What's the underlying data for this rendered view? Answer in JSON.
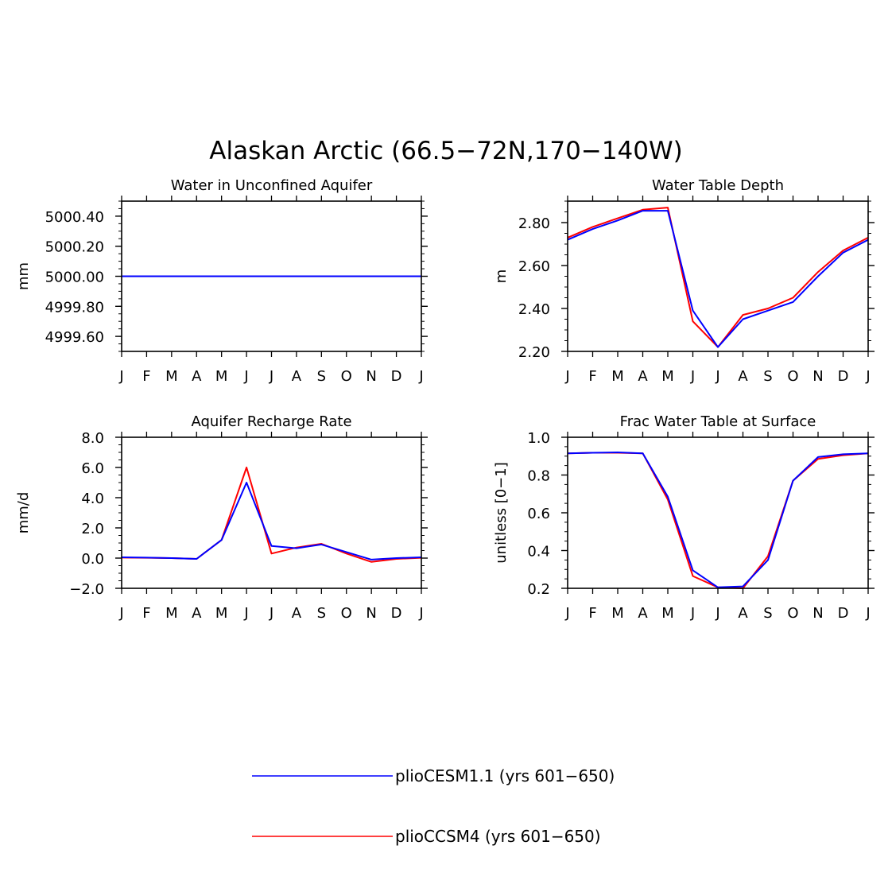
{
  "figure": {
    "title": "Alaskan Arctic (66.5−72N,170−140W)"
  },
  "legend": {
    "entries": [
      {
        "label": "plioCESM1.1 (yrs 601−650)",
        "color": "#0000ff"
      },
      {
        "label": "plioCCSM4 (yrs 601−650)",
        "color": "#ff0000"
      }
    ]
  },
  "chart_data": [
    {
      "type": "line",
      "title": "Water in Unconfined Aquifer",
      "xlabel": "",
      "ylabel": "mm",
      "categories": [
        "J",
        "F",
        "M",
        "A",
        "M",
        "J",
        "J",
        "A",
        "S",
        "O",
        "N",
        "D",
        "J"
      ],
      "ylim": [
        4999.5,
        5000.5
      ],
      "yticks": [
        4999.6,
        4999.8,
        5000.0,
        5000.2,
        5000.4
      ],
      "ytick_labels": [
        "4999.60",
        "4999.80",
        "5000.00",
        "5000.20",
        "5000.40"
      ],
      "series": [
        {
          "name": "plioCCSM4 (yrs 601−650)",
          "color": "#ff0000",
          "values": [
            5000,
            5000,
            5000,
            5000,
            5000,
            5000,
            5000,
            5000,
            5000,
            5000,
            5000,
            5000,
            5000
          ]
        },
        {
          "name": "plioCESM1.1 (yrs 601−650)",
          "color": "#0000ff",
          "values": [
            5000,
            5000,
            5000,
            5000,
            5000,
            5000,
            5000,
            5000,
            5000,
            5000,
            5000,
            5000,
            5000
          ]
        }
      ]
    },
    {
      "type": "line",
      "title": "Water Table Depth",
      "xlabel": "",
      "ylabel": "m",
      "categories": [
        "J",
        "F",
        "M",
        "A",
        "M",
        "J",
        "J",
        "A",
        "S",
        "O",
        "N",
        "D",
        "J"
      ],
      "ylim": [
        2.2,
        2.9
      ],
      "yticks": [
        2.2,
        2.4,
        2.6,
        2.8
      ],
      "ytick_labels": [
        "2.20",
        "2.40",
        "2.60",
        "2.80"
      ],
      "series": [
        {
          "name": "plioCCSM4 (yrs 601−650)",
          "color": "#ff0000",
          "values": [
            2.73,
            2.78,
            2.82,
            2.86,
            2.87,
            2.34,
            2.22,
            2.37,
            2.4,
            2.45,
            2.57,
            2.67,
            2.73
          ]
        },
        {
          "name": "plioCESM1.1 (yrs 601−650)",
          "color": "#0000ff",
          "values": [
            2.72,
            2.77,
            2.81,
            2.855,
            2.855,
            2.39,
            2.22,
            2.35,
            2.39,
            2.43,
            2.55,
            2.66,
            2.72
          ]
        }
      ]
    },
    {
      "type": "line",
      "title": "Aquifer Recharge Rate",
      "xlabel": "",
      "ylabel": "mm/d",
      "categories": [
        "J",
        "F",
        "M",
        "A",
        "M",
        "J",
        "J",
        "A",
        "S",
        "O",
        "N",
        "D",
        "J"
      ],
      "ylim": [
        -2.0,
        8.0
      ],
      "yticks": [
        -2.0,
        0.0,
        2.0,
        4.0,
        6.0,
        8.0
      ],
      "ytick_labels": [
        "−2.0",
        "0.0",
        "2.0",
        "4.0",
        "6.0",
        "8.0"
      ],
      "series": [
        {
          "name": "plioCCSM4 (yrs 601−650)",
          "color": "#ff0000",
          "values": [
            0.03,
            0.02,
            0.0,
            -0.05,
            1.2,
            6.0,
            0.3,
            0.7,
            0.95,
            0.3,
            -0.25,
            -0.05,
            0.02
          ]
        },
        {
          "name": "plioCESM1.1 (yrs 601−650)",
          "color": "#0000ff",
          "values": [
            0.05,
            0.03,
            0.0,
            -0.05,
            1.2,
            5.0,
            0.8,
            0.65,
            0.9,
            0.4,
            -0.1,
            0.0,
            0.05
          ]
        }
      ]
    },
    {
      "type": "line",
      "title": "Frac Water Table at Surface",
      "xlabel": "",
      "ylabel": "unitless [0−1]",
      "categories": [
        "J",
        "F",
        "M",
        "A",
        "M",
        "J",
        "J",
        "A",
        "S",
        "O",
        "N",
        "D",
        "J"
      ],
      "ylim": [
        0.2,
        1.0
      ],
      "yticks": [
        0.2,
        0.4,
        0.6,
        0.8,
        1.0
      ],
      "ytick_labels": [
        "0.2",
        "0.4",
        "0.6",
        "0.8",
        "1.0"
      ],
      "series": [
        {
          "name": "plioCCSM4 (yrs 601−650)",
          "color": "#ff0000",
          "values": [
            0.915,
            0.918,
            0.918,
            0.915,
            0.67,
            0.265,
            0.205,
            0.2,
            0.37,
            0.77,
            0.885,
            0.905,
            0.915
          ]
        },
        {
          "name": "plioCESM1.1 (yrs 601−650)",
          "color": "#0000ff",
          "values": [
            0.915,
            0.918,
            0.92,
            0.915,
            0.685,
            0.295,
            0.205,
            0.21,
            0.35,
            0.77,
            0.895,
            0.91,
            0.915
          ]
        }
      ]
    }
  ]
}
